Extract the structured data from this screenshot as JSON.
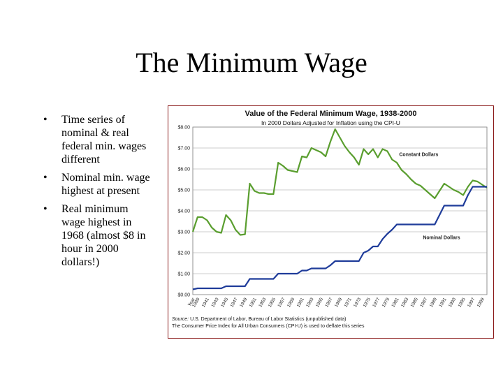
{
  "slide": {
    "title": "The Minimum Wage",
    "bullets": [
      "Time series of nominal & real federal min. wages different",
      "Nominal min. wage highest at present",
      "Real minimum wage highest in 1968 (almost $8 in hour in 2000 dollars!)"
    ],
    "bullet_symbol": "•"
  },
  "chart_data": {
    "type": "line",
    "title": "Value of the Federal Minimum Wage, 1938-2000",
    "subtitle": "In 2000 Dollars Adjusted for Inflation using the CPI-U",
    "xlabel": "",
    "ylabel": "",
    "xlim": [
      1938,
      2000
    ],
    "ylim": [
      0,
      8
    ],
    "y_ticks": [
      "$0.00",
      "$1.00",
      "$2.00",
      "$3.00",
      "$4.00",
      "$5.00",
      "$6.00",
      "$7.00",
      "$8.00"
    ],
    "x_first_tick": "Year",
    "x_tick_years": [
      1939,
      1941,
      1943,
      1945,
      1947,
      1949,
      1951,
      1953,
      1955,
      1957,
      1959,
      1961,
      1963,
      1965,
      1967,
      1969,
      1971,
      1973,
      1975,
      1977,
      1979,
      1981,
      1983,
      1985,
      1987,
      1989,
      1991,
      1993,
      1995,
      1997,
      1999
    ],
    "grid": true,
    "series": [
      {
        "name": "Constant Dollars",
        "color": "#5a9e2f",
        "points": [
          [
            1938,
            3.0
          ],
          [
            1939,
            3.7
          ],
          [
            1940,
            3.7
          ],
          [
            1941,
            3.55
          ],
          [
            1942,
            3.2
          ],
          [
            1943,
            3.0
          ],
          [
            1944,
            2.95
          ],
          [
            1945,
            3.8
          ],
          [
            1946,
            3.55
          ],
          [
            1947,
            3.1
          ],
          [
            1948,
            2.85
          ],
          [
            1949,
            2.88
          ],
          [
            1950,
            5.3
          ],
          [
            1951,
            4.95
          ],
          [
            1952,
            4.85
          ],
          [
            1953,
            4.85
          ],
          [
            1954,
            4.8
          ],
          [
            1955,
            4.8
          ],
          [
            1956,
            6.3
          ],
          [
            1957,
            6.15
          ],
          [
            1958,
            5.95
          ],
          [
            1959,
            5.9
          ],
          [
            1960,
            5.85
          ],
          [
            1961,
            6.6
          ],
          [
            1962,
            6.55
          ],
          [
            1963,
            7.0
          ],
          [
            1964,
            6.9
          ],
          [
            1965,
            6.8
          ],
          [
            1966,
            6.6
          ],
          [
            1967,
            7.3
          ],
          [
            1968,
            7.9
          ],
          [
            1969,
            7.5
          ],
          [
            1970,
            7.1
          ],
          [
            1971,
            6.8
          ],
          [
            1972,
            6.55
          ],
          [
            1973,
            6.2
          ],
          [
            1974,
            6.95
          ],
          [
            1975,
            6.7
          ],
          [
            1976,
            6.95
          ],
          [
            1977,
            6.55
          ],
          [
            1978,
            6.95
          ],
          [
            1979,
            6.85
          ],
          [
            1980,
            6.45
          ],
          [
            1981,
            6.3
          ],
          [
            1982,
            5.95
          ],
          [
            1983,
            5.75
          ],
          [
            1984,
            5.5
          ],
          [
            1985,
            5.3
          ],
          [
            1986,
            5.2
          ],
          [
            1987,
            5.0
          ],
          [
            1988,
            4.8
          ],
          [
            1989,
            4.6
          ],
          [
            1990,
            4.95
          ],
          [
            1991,
            5.3
          ],
          [
            1992,
            5.15
          ],
          [
            1993,
            5.0
          ],
          [
            1994,
            4.9
          ],
          [
            1995,
            4.75
          ],
          [
            1996,
            5.15
          ],
          [
            1997,
            5.45
          ],
          [
            1998,
            5.4
          ],
          [
            1999,
            5.25
          ],
          [
            2000,
            5.1
          ]
        ]
      },
      {
        "name": "Nominal Dollars",
        "color": "#1f3c9a",
        "points": [
          [
            1938,
            0.25
          ],
          [
            1939,
            0.3
          ],
          [
            1944,
            0.3
          ],
          [
            1945,
            0.4
          ],
          [
            1949,
            0.4
          ],
          [
            1950,
            0.75
          ],
          [
            1955,
            0.75
          ],
          [
            1956,
            1.0
          ],
          [
            1960,
            1.0
          ],
          [
            1961,
            1.15
          ],
          [
            1962,
            1.15
          ],
          [
            1963,
            1.25
          ],
          [
            1966,
            1.25
          ],
          [
            1967,
            1.4
          ],
          [
            1968,
            1.6
          ],
          [
            1973,
            1.6
          ],
          [
            1974,
            2.0
          ],
          [
            1975,
            2.1
          ],
          [
            1976,
            2.3
          ],
          [
            1977,
            2.3
          ],
          [
            1978,
            2.65
          ],
          [
            1979,
            2.9
          ],
          [
            1980,
            3.1
          ],
          [
            1981,
            3.35
          ],
          [
            1989,
            3.35
          ],
          [
            1990,
            3.8
          ],
          [
            1991,
            4.25
          ],
          [
            1995,
            4.25
          ],
          [
            1996,
            4.75
          ],
          [
            1997,
            5.15
          ],
          [
            1999,
            5.15
          ],
          [
            2000,
            5.15
          ]
        ]
      }
    ],
    "source_label": "Source:",
    "source_text": "U.S. Department of Labor, Bureau of Labor Statistics (unpublished data)",
    "note": "The Consumer Price Index for All Urban Consumers (CPI-U) is used to deflate this series"
  }
}
